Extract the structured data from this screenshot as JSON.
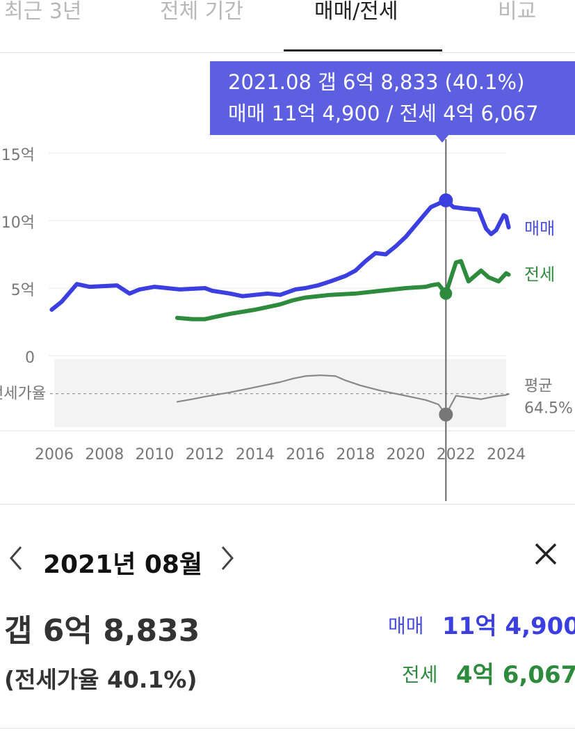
{
  "tabs": [
    {
      "label": "최근 3년",
      "active": false
    },
    {
      "label": "전체 기간",
      "active": false
    },
    {
      "label": "매매/전세",
      "active": true
    },
    {
      "label": "비교",
      "active": false
    }
  ],
  "tooltip": {
    "line1": "2021.08  갭 6억 8,833 (40.1%)",
    "line2": "매매 11억 4,900 / 전세 4억 6,067"
  },
  "chart_data": {
    "type": "line",
    "yticks": [
      "15억",
      "10억",
      "5억",
      "0"
    ],
    "ylim": [
      0,
      15
    ],
    "yunit": "억",
    "xticks": [
      "2006",
      "2008",
      "2010",
      "2012",
      "2014",
      "2016",
      "2018",
      "2020",
      "2022",
      "2024"
    ],
    "series": [
      {
        "name": "매매",
        "color": "#3b3fe0",
        "x": [
          2005.9,
          2006.3,
          2006.9,
          2007.4,
          2008.5,
          2009.0,
          2009.4,
          2010.0,
          2011.0,
          2012.0,
          2012.3,
          2013.0,
          2013.5,
          2014.0,
          2014.5,
          2015.0,
          2015.6,
          2016.0,
          2016.5,
          2017.0,
          2017.6,
          2018.0,
          2018.4,
          2018.8,
          2019.2,
          2019.6,
          2020.0,
          2020.5,
          2021.0,
          2021.6,
          2021.9,
          2022.3,
          2022.9,
          2023.2,
          2023.4,
          2023.6,
          2023.9,
          2024.0,
          2024.1
        ],
        "values": [
          3.4,
          4.0,
          5.3,
          5.1,
          5.2,
          4.6,
          4.9,
          5.1,
          4.9,
          5.0,
          4.8,
          4.6,
          4.4,
          4.5,
          4.6,
          4.5,
          4.9,
          5.0,
          5.2,
          5.5,
          5.9,
          6.3,
          7.0,
          7.6,
          7.5,
          8.1,
          8.8,
          9.9,
          11.0,
          11.5,
          11.0,
          10.9,
          10.8,
          9.4,
          9.0,
          9.3,
          10.4,
          10.3,
          9.5
        ]
      },
      {
        "name": "전세",
        "color": "#2e8b3e",
        "x": [
          2010.9,
          2011.5,
          2012.0,
          2012.5,
          2013.0,
          2014.0,
          2014.5,
          2015.0,
          2015.5,
          2016.0,
          2016.5,
          2017.0,
          2018.0,
          2019.0,
          2020.0,
          2020.8,
          2021.0,
          2021.3,
          2021.6,
          2022.0,
          2022.2,
          2022.5,
          2023.0,
          2023.3,
          2023.7,
          2024.0,
          2024.1
        ],
        "values": [
          2.8,
          2.7,
          2.7,
          2.9,
          3.1,
          3.4,
          3.6,
          3.8,
          4.1,
          4.3,
          4.4,
          4.5,
          4.6,
          4.8,
          5.0,
          5.1,
          5.2,
          5.3,
          4.6,
          6.9,
          7.0,
          5.5,
          6.3,
          5.8,
          5.5,
          6.1,
          6.0
        ]
      },
      {
        "name": "전세가율",
        "color": "#888888",
        "x": [
          2010.9,
          2011.5,
          2012.0,
          2013.0,
          2014.0,
          2015.0,
          2015.5,
          2016.0,
          2016.6,
          2017.2,
          2017.6,
          2018.2,
          2019.0,
          2020.0,
          2020.8,
          2021.3,
          2021.6,
          2022.0,
          2022.5,
          2023.0,
          2023.5,
          2024.0,
          2024.1
        ],
        "values": [
          55,
          58,
          61,
          66,
          72,
          78,
          82,
          85,
          86,
          85,
          80,
          74,
          68,
          62,
          57,
          52,
          40.1,
          62,
          60,
          58,
          61,
          63,
          64
        ]
      }
    ],
    "series_labels": {
      "sale": "매매",
      "jeonse": "전세",
      "ratio": "전세가율"
    },
    "avg_label": "평균",
    "avg_value": "64.5%",
    "avg_ratio": 64.5,
    "ratio_ylim": [
      30,
      100
    ],
    "selected_x": 2021.6
  },
  "detail": {
    "month": "2021년 08월",
    "gap": "갭 6억 8,833",
    "ratio": "(전세가율 40.1%)",
    "sale_label": "매매",
    "sale_value": "11억 4,900",
    "jeonse_label": "전세",
    "jeonse_value": "4억 6,067",
    "prev_icon": "chevron-left-icon",
    "next_icon": "chevron-right-icon",
    "close_icon": "close-icon"
  }
}
